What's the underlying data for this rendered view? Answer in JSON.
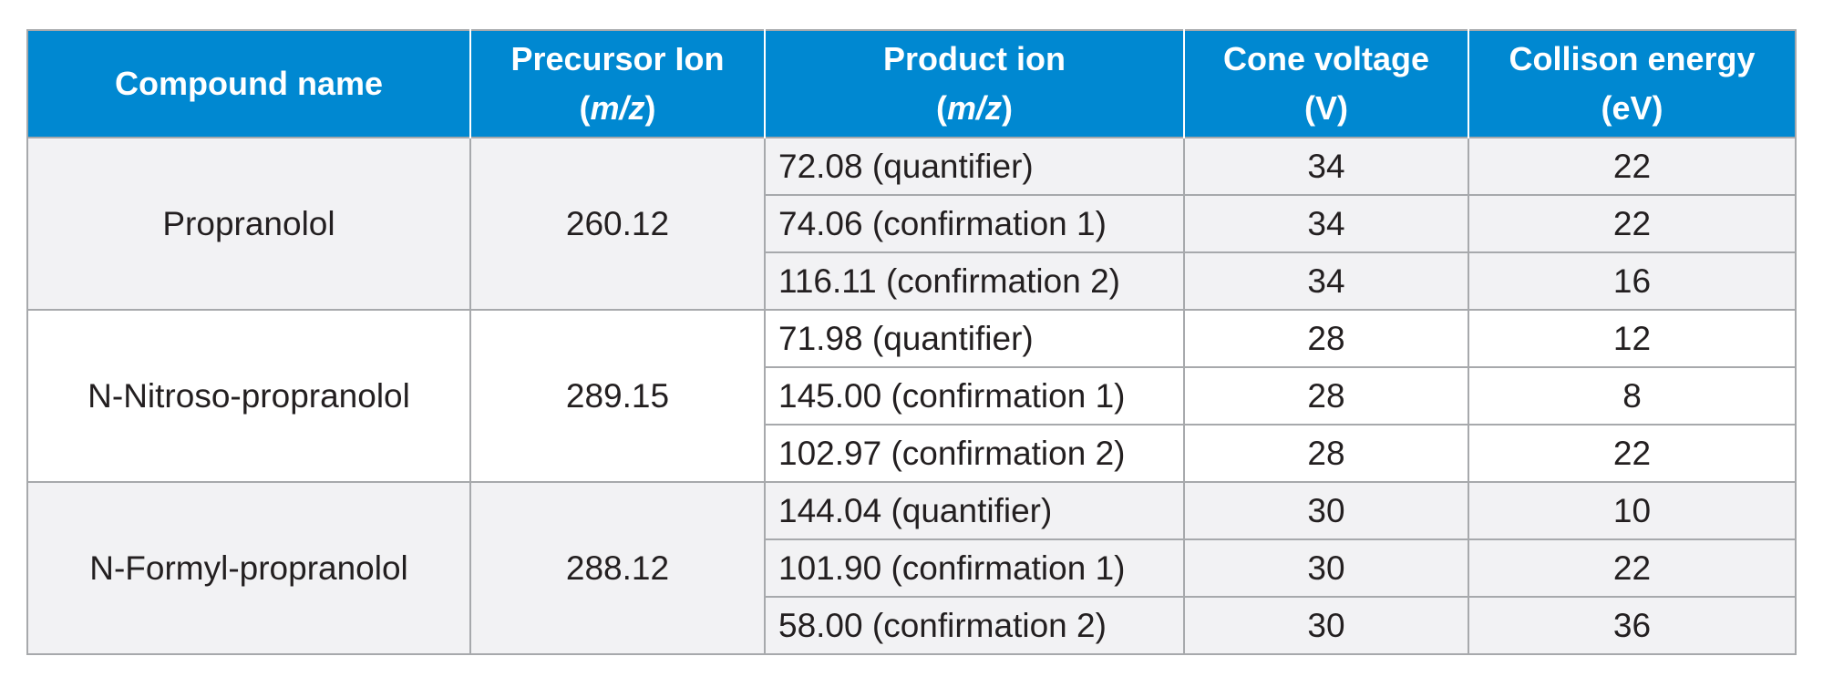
{
  "table": {
    "headers": [
      {
        "line1": "Compound name",
        "line2": "",
        "italic_part": "",
        "suffix": ""
      },
      {
        "line1": "Precursor Ion",
        "line2": "(",
        "italic_part": "m/z",
        "suffix": ")"
      },
      {
        "line1": "Product ion",
        "line2": "(",
        "italic_part": "m/z",
        "suffix": ")"
      },
      {
        "line1": "Cone voltage",
        "line2": "(V)",
        "italic_part": "",
        "suffix": ""
      },
      {
        "line1": "Collison energy",
        "line2": "(eV)",
        "italic_part": "",
        "suffix": ""
      }
    ],
    "groups": [
      {
        "compound": "Propranolol",
        "precursor": "260.12",
        "shade": "#f2f2f4",
        "rows": [
          {
            "product": "72.08 (quantifier)",
            "cone": "34",
            "collision": "22"
          },
          {
            "product": "74.06 (confirmation 1)",
            "cone": "34",
            "collision": "22"
          },
          {
            "product": "116.11 (confirmation 2)",
            "cone": "34",
            "collision": "16"
          }
        ]
      },
      {
        "compound": "N-Nitroso-propranolol",
        "precursor": "289.15",
        "shade": "#ffffff",
        "rows": [
          {
            "product": "71.98 (quantifier)",
            "cone": "28",
            "collision": "12"
          },
          {
            "product": "145.00 (confirmation 1)",
            "cone": "28",
            "collision": "8"
          },
          {
            "product": "102.97 (confirmation 2)",
            "cone": "28",
            "collision": "22"
          }
        ]
      },
      {
        "compound": "N-Formyl-propranolol",
        "precursor": "288.12",
        "shade": "#f2f2f4",
        "rows": [
          {
            "product": "144.04 (quantifier)",
            "cone": "30",
            "collision": "10"
          },
          {
            "product": "101.90 (confirmation 1)",
            "cone": "30",
            "collision": "22"
          },
          {
            "product": "58.00 (confirmation 2)",
            "cone": "30",
            "collision": "36"
          }
        ]
      }
    ]
  },
  "colors": {
    "header_bg": "#0088d1",
    "header_text": "#ffffff",
    "border": "#a7a9ac",
    "body_text": "#231f20"
  }
}
